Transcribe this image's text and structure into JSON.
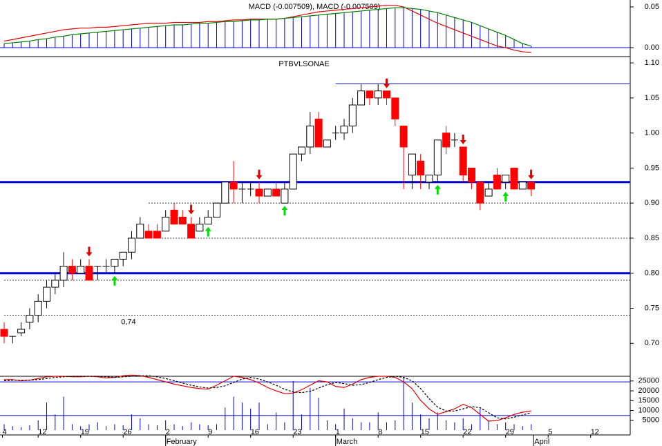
{
  "chart_data": [
    {
      "type": "macd",
      "title": "MACD (-0.007509), MACD (-0.007509)",
      "ylim": [
        -0.0093,
        0.0585
      ],
      "yticks": [
        0.05,
        {
          "value": 0,
          "label": "0.00"
        }
      ],
      "series": [
        {
          "color": "#e00000",
          "values": [
            0.008,
            0.01,
            0.012,
            0.014,
            0.016,
            0.018,
            0.02,
            0.022,
            0.023,
            0.024,
            0.024,
            0.025,
            0.025,
            0.026,
            0.027,
            0.028,
            0.029,
            0.03,
            0.03,
            0.03,
            0.031,
            0.031,
            0.031,
            0.031,
            0.032,
            0.032,
            0.033,
            0.034,
            0.034,
            0.035,
            0.035,
            0.035,
            0.035,
            0.036,
            0.038,
            0.04,
            0.042,
            0.044,
            0.045,
            0.046,
            0.047,
            0.048,
            0.049,
            0.05,
            0.051,
            0.052,
            0.052,
            0.05,
            0.045,
            0.04,
            0.035,
            0.03,
            0.026,
            0.022,
            0.018,
            0.014,
            0.01,
            0.006,
            0.002,
            0.0,
            -0.003,
            -0.005,
            -0.006
          ]
        },
        {
          "color": "#008000",
          "values": [
            0.005,
            0.006,
            0.007,
            0.008,
            0.01,
            0.011,
            0.013,
            0.014,
            0.016,
            0.017,
            0.018,
            0.019,
            0.02,
            0.021,
            0.022,
            0.023,
            0.024,
            0.025,
            0.026,
            0.027,
            0.028,
            0.028,
            0.029,
            0.03,
            0.03,
            0.031,
            0.032,
            0.032,
            0.033,
            0.034,
            0.034,
            0.035,
            0.035,
            0.036,
            0.037,
            0.038,
            0.039,
            0.04,
            0.041,
            0.042,
            0.043,
            0.044,
            0.045,
            0.046,
            0.047,
            0.048,
            0.049,
            0.049,
            0.048,
            0.047,
            0.045,
            0.043,
            0.04,
            0.037,
            0.034,
            0.031,
            0.027,
            0.023,
            0.019,
            0.015,
            0.01,
            0.005,
            0.002
          ]
        }
      ],
      "histogram_color": "#0000cc"
    },
    {
      "type": "candlestick",
      "title": "PTBVLSONAE",
      "ylim": [
        0.653,
        1.106
      ],
      "yticks": [
        {
          "value": 0.7,
          "label": "0.70"
        },
        0.75,
        {
          "value": 0.8,
          "label": "0.80"
        },
        0.85,
        {
          "value": 0.9,
          "label": "0.90"
        },
        0.95,
        {
          "value": 1,
          "label": "1.00"
        },
        1.05,
        {
          "value": 1.1,
          "label": "1.10"
        }
      ],
      "open": [
        0.72,
        0.71,
        0.715,
        0.73,
        0.74,
        0.76,
        0.78,
        0.79,
        0.81,
        0.8,
        0.81,
        0.81,
        0.81,
        0.81,
        0.82,
        0.83,
        0.85,
        0.86,
        0.86,
        0.86,
        0.89,
        0.88,
        0.87,
        0.86,
        0.87,
        0.88,
        0.9,
        0.93,
        0.92,
        0.92,
        0.92,
        0.91,
        0.92,
        0.9,
        0.92,
        0.97,
        0.98,
        1.02,
        0.98,
        1.0,
        1.0,
        1.01,
        1.04,
        1.06,
        1.05,
        1.06,
        1.05,
        1.01,
        0.94,
        0.96,
        0.93,
        0.94,
        1.0,
        0.99,
        0.98,
        0.95,
        0.93,
        0.91,
        0.94,
        0.93,
        0.95,
        0.92,
        0.93
      ],
      "high": [
        0.73,
        0.71,
        0.73,
        0.75,
        0.77,
        0.79,
        0.8,
        0.83,
        0.82,
        0.82,
        0.82,
        0.81,
        0.82,
        0.82,
        0.83,
        0.86,
        0.88,
        0.87,
        0.87,
        0.89,
        0.9,
        0.89,
        0.88,
        0.88,
        0.89,
        0.9,
        0.93,
        0.96,
        0.93,
        0.93,
        0.93,
        0.92,
        0.93,
        0.93,
        0.97,
        0.98,
        1.03,
        1.03,
        0.99,
        1.01,
        1.02,
        1.05,
        1.07,
        1.06,
        1.07,
        1.06,
        1.05,
        1.01,
        0.97,
        0.97,
        0.94,
        0.99,
        1.01,
        1.0,
        0.98,
        0.95,
        0.93,
        0.93,
        0.95,
        0.94,
        0.95,
        0.93,
        0.93
      ],
      "low": [
        0.7,
        0.7,
        0.71,
        0.72,
        0.73,
        0.75,
        0.77,
        0.78,
        0.79,
        0.8,
        0.79,
        0.79,
        0.8,
        0.8,
        0.81,
        0.82,
        0.85,
        0.85,
        0.85,
        0.86,
        0.87,
        0.87,
        0.85,
        0.86,
        0.87,
        0.88,
        0.9,
        0.9,
        0.9,
        0.91,
        0.9,
        0.91,
        0.91,
        0.9,
        0.92,
        0.96,
        0.97,
        0.98,
        0.98,
        0.99,
        0.99,
        1.0,
        1.04,
        1.04,
        1.04,
        1.04,
        1.01,
        0.92,
        0.92,
        0.92,
        0.92,
        0.93,
        0.97,
        0.98,
        0.93,
        0.92,
        0.89,
        0.91,
        0.92,
        0.92,
        0.92,
        0.92,
        0.91
      ],
      "close": [
        0.71,
        0.71,
        0.72,
        0.74,
        0.76,
        0.78,
        0.79,
        0.81,
        0.8,
        0.81,
        0.79,
        0.81,
        0.81,
        0.82,
        0.83,
        0.85,
        0.87,
        0.85,
        0.85,
        0.88,
        0.87,
        0.87,
        0.85,
        0.87,
        0.88,
        0.9,
        0.93,
        0.92,
        0.92,
        0.92,
        0.91,
        0.92,
        0.91,
        0.92,
        0.97,
        0.98,
        1.01,
        0.98,
        0.99,
        1.0,
        1.01,
        1.04,
        1.06,
        1.05,
        1.06,
        1.05,
        1.02,
        0.98,
        0.97,
        0.94,
        0.94,
        0.99,
        0.98,
        0.99,
        0.94,
        0.93,
        0.9,
        0.92,
        0.92,
        0.94,
        0.92,
        0.93,
        0.92
      ],
      "up_color": "#ffffff",
      "down_color": "#ff0000",
      "support_lines": [
        0.93,
        0.8
      ],
      "resistance_line": {
        "value": 1.07,
        "start": 39
      },
      "dashed_lines": [
        {
          "value": 0.9,
          "start": 17
        },
        {
          "value": 0.85,
          "start": 16.6
        },
        {
          "value": 0.79,
          "start": 0
        },
        {
          "value": 0.74,
          "start": 0
        }
      ],
      "annotation": {
        "text": "0,74",
        "x": 14,
        "y": 0.73
      },
      "sell_signals": [
        10,
        22,
        30,
        45,
        54,
        62
      ],
      "buy_signals": [
        13,
        24,
        33,
        51,
        59
      ]
    },
    {
      "type": "volume",
      "ylim": [
        0,
        27400
      ],
      "yticks": [
        5000,
        10000,
        15000,
        20000,
        25000
      ],
      "values": [
        3000,
        2000,
        1500,
        2500,
        5000,
        14000,
        8000,
        17000,
        3000,
        2000,
        3000,
        4000,
        2000,
        3000,
        2500,
        8000,
        6000,
        3000,
        2500,
        5000,
        3000,
        2000,
        4000,
        3000,
        2500,
        3000,
        11500,
        17000,
        14000,
        11000,
        14000,
        3000,
        9000,
        4000,
        25000,
        8000,
        21500,
        16500,
        5000,
        3000,
        11000,
        6000,
        4000,
        4000,
        9000,
        4000,
        5000,
        27000,
        14000,
        8000,
        6000,
        9000,
        5000,
        4000,
        6000,
        3000,
        11000,
        5000,
        3000,
        4000,
        3000,
        2000,
        3000
      ],
      "color": "#0000cc",
      "y2lim": [
        -6,
        90
      ],
      "levels": [
        20,
        80
      ],
      "stochastic": [
        {
          "color": "#e00000",
          "values": [
            84,
            84,
            82,
            83,
            86,
            89,
            90,
            90,
            89,
            89,
            90,
            89,
            87,
            88,
            91,
            92,
            91,
            88,
            84,
            80,
            76,
            73,
            70,
            68,
            67,
            74,
            82,
            90,
            88,
            84,
            78,
            70,
            64,
            59,
            60,
            66,
            74,
            82,
            80,
            72,
            70,
            76,
            84,
            88,
            90,
            90,
            88,
            80,
            68,
            47,
            32,
            22,
            27,
            32,
            40,
            34,
            22,
            10,
            11,
            16,
            22,
            26,
            28
          ]
        },
        {
          "color": "#000000",
          "dashed": true,
          "values": [
            82,
            83,
            83,
            83,
            84,
            86,
            88,
            89,
            90,
            90,
            90,
            90,
            89,
            88,
            89,
            90,
            91,
            91,
            89,
            86,
            82,
            78,
            74,
            71,
            69,
            70,
            73,
            79,
            85,
            88,
            85,
            80,
            74,
            67,
            62,
            61,
            63,
            69,
            75,
            79,
            77,
            74,
            75,
            79,
            84,
            88,
            90,
            88,
            82,
            68,
            50,
            35,
            28,
            28,
            32,
            36,
            34,
            25,
            16,
            14,
            17,
            21,
            25
          ]
        }
      ],
      "xticks": [
        {
          "value": -0.2,
          "label": "4"
        },
        {
          "value": 4,
          "label": "12"
        },
        {
          "value": 9,
          "label": "19"
        },
        {
          "value": 14,
          "label": "26"
        },
        {
          "value": 19,
          "label": "2"
        },
        {
          "value": 24,
          "label": "9"
        },
        {
          "value": 29,
          "label": "16"
        },
        {
          "value": 34,
          "label": "23"
        },
        {
          "value": 39,
          "label": "1"
        },
        {
          "value": 44,
          "label": "8"
        },
        {
          "value": 49,
          "label": "15"
        },
        {
          "value": 54,
          "label": "22"
        },
        {
          "value": 59,
          "label": "29"
        },
        {
          "value": 64,
          "label": "5"
        },
        {
          "value": 69,
          "label": "12"
        }
      ],
      "month_ticks": [
        {
          "value": 19,
          "label": "February"
        },
        {
          "value": 39,
          "label": "March"
        },
        {
          "value": 62.3,
          "label": "April"
        }
      ]
    }
  ]
}
